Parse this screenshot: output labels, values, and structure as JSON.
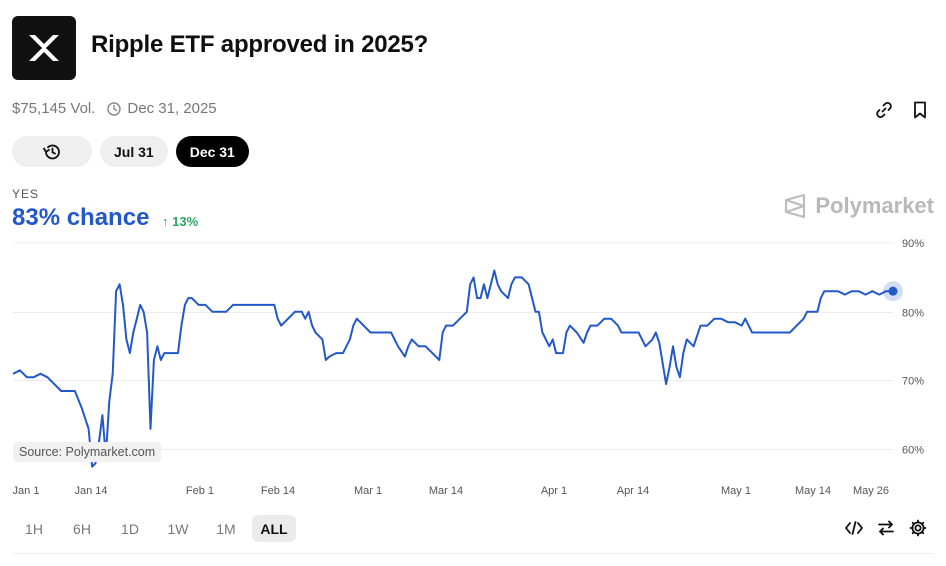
{
  "market": {
    "title": "Ripple ETF approved in 2025?",
    "volume": "$75,145 Vol.",
    "end_date": "Dec 31, 2025"
  },
  "pills": {
    "jul": "Jul 31",
    "dec": "Dec 31"
  },
  "outcome": {
    "label": "YES",
    "chance": "83% chance",
    "delta": "↑ 13%"
  },
  "brand": {
    "name": "Polymarket"
  },
  "source": "Source: Polymarket.com",
  "ranges": [
    "1H",
    "6H",
    "1D",
    "1W",
    "1M",
    "ALL"
  ],
  "colors": {
    "line": "#2358c9",
    "up": "#2fa462"
  },
  "chart_data": {
    "type": "line",
    "y_ticks": [
      "90%",
      "80%",
      "70%",
      "60%"
    ],
    "x_ticks": [
      "Jan 1",
      "Jan 14",
      "Feb 1",
      "Feb 14",
      "Mar 1",
      "Mar 14",
      "Apr 1",
      "Apr 14",
      "May 1",
      "May 14",
      "May 26"
    ],
    "ylim": [
      57,
      90
    ],
    "grid": true,
    "series": [
      {
        "points": [
          [
            0,
            71
          ],
          [
            1,
            71.5
          ],
          [
            2,
            70.5
          ],
          [
            3,
            70.5
          ],
          [
            4,
            71
          ],
          [
            5,
            70.5
          ],
          [
            6,
            69.5
          ],
          [
            7,
            68.5
          ],
          [
            8,
            68.5
          ],
          [
            9,
            68.5
          ],
          [
            10,
            66
          ],
          [
            11,
            63
          ],
          [
            11.5,
            57.5
          ],
          [
            12,
            58
          ],
          [
            12.5,
            61
          ],
          [
            13,
            65
          ],
          [
            13.5,
            59
          ],
          [
            14,
            67
          ],
          [
            14.5,
            71
          ],
          [
            15,
            83
          ],
          [
            15.5,
            84
          ],
          [
            16,
            81
          ],
          [
            16.5,
            76
          ],
          [
            17,
            74
          ],
          [
            17.5,
            77
          ],
          [
            18,
            79
          ],
          [
            18.5,
            81
          ],
          [
            19,
            80
          ],
          [
            19.5,
            77
          ],
          [
            20,
            63
          ],
          [
            20.5,
            73
          ],
          [
            21,
            75
          ],
          [
            21.5,
            73
          ],
          [
            22,
            74
          ],
          [
            23,
            74
          ],
          [
            24,
            74
          ],
          [
            24.5,
            78
          ],
          [
            25,
            81
          ],
          [
            25.5,
            82
          ],
          [
            26,
            82
          ],
          [
            27,
            81
          ],
          [
            28,
            81
          ],
          [
            29,
            80
          ],
          [
            30,
            80
          ],
          [
            31,
            80
          ],
          [
            32,
            81
          ],
          [
            33,
            81
          ],
          [
            34,
            81
          ],
          [
            35,
            81
          ],
          [
            36,
            81
          ],
          [
            37,
            81
          ],
          [
            38,
            81
          ],
          [
            38.5,
            79
          ],
          [
            39,
            78
          ],
          [
            39.5,
            78.5
          ],
          [
            40,
            79
          ],
          [
            41,
            80
          ],
          [
            42,
            80
          ],
          [
            42.5,
            79
          ],
          [
            43,
            80
          ],
          [
            43.5,
            78
          ],
          [
            44,
            77
          ],
          [
            45,
            76
          ],
          [
            45.5,
            73
          ],
          [
            46,
            73.5
          ],
          [
            47,
            74
          ],
          [
            48,
            74
          ],
          [
            48.5,
            75
          ],
          [
            49,
            76
          ],
          [
            49.5,
            78
          ],
          [
            50,
            79
          ],
          [
            51,
            78
          ],
          [
            52,
            77
          ],
          [
            53,
            77
          ],
          [
            54,
            77
          ],
          [
            55,
            77
          ],
          [
            55.5,
            76
          ],
          [
            56,
            75
          ],
          [
            57,
            73.5
          ],
          [
            57.5,
            75
          ],
          [
            58,
            76
          ],
          [
            59,
            75
          ],
          [
            60,
            75
          ],
          [
            61,
            74
          ],
          [
            62,
            73
          ],
          [
            62.5,
            77
          ],
          [
            63,
            78
          ],
          [
            64,
            78
          ],
          [
            65,
            79
          ],
          [
            66,
            80
          ],
          [
            66.5,
            84
          ],
          [
            67,
            85
          ],
          [
            67.5,
            82
          ],
          [
            68,
            82
          ],
          [
            68.5,
            84
          ],
          [
            69,
            82
          ],
          [
            70,
            86
          ],
          [
            70.5,
            84
          ],
          [
            71,
            83
          ],
          [
            72,
            82
          ],
          [
            72.5,
            84
          ],
          [
            73,
            85
          ],
          [
            74,
            85
          ],
          [
            75,
            84
          ],
          [
            75.5,
            82
          ],
          [
            76,
            80
          ],
          [
            76.5,
            80
          ],
          [
            77,
            77
          ],
          [
            78,
            75
          ],
          [
            78.5,
            76
          ],
          [
            79,
            74
          ],
          [
            80,
            74
          ],
          [
            80.5,
            77
          ],
          [
            81,
            78
          ],
          [
            82,
            77
          ],
          [
            83,
            75.5
          ],
          [
            83.5,
            77
          ],
          [
            84,
            78
          ],
          [
            85,
            78
          ],
          [
            86,
            79
          ],
          [
            87,
            79
          ],
          [
            88,
            78
          ],
          [
            88.5,
            77
          ],
          [
            89,
            77
          ],
          [
            90,
            77
          ],
          [
            91,
            77
          ],
          [
            92,
            75
          ],
          [
            93,
            76
          ],
          [
            93.5,
            77
          ],
          [
            94,
            75.5
          ],
          [
            95,
            69.5
          ],
          [
            95.5,
            72
          ],
          [
            96,
            75
          ],
          [
            96.5,
            72
          ],
          [
            97,
            70.5
          ],
          [
            97.5,
            74
          ],
          [
            98,
            76
          ],
          [
            99,
            75
          ],
          [
            100,
            78
          ],
          [
            101,
            78
          ],
          [
            102,
            79
          ],
          [
            103,
            79
          ],
          [
            104,
            78.5
          ],
          [
            105,
            78.5
          ],
          [
            106,
            78
          ],
          [
            106.5,
            79
          ],
          [
            107,
            78
          ],
          [
            107.5,
            77
          ],
          [
            108,
            77
          ],
          [
            109,
            77
          ],
          [
            110,
            77
          ],
          [
            111,
            77
          ],
          [
            112,
            77
          ],
          [
            113,
            77
          ],
          [
            114,
            78
          ],
          [
            115,
            79
          ],
          [
            115.5,
            80
          ],
          [
            116,
            80
          ],
          [
            117,
            80
          ],
          [
            117.5,
            82
          ],
          [
            118,
            83
          ],
          [
            119,
            83
          ],
          [
            120,
            83
          ],
          [
            121,
            82.5
          ],
          [
            122,
            83
          ],
          [
            123,
            83
          ],
          [
            124,
            82.5
          ],
          [
            125,
            83
          ],
          [
            126,
            82.5
          ],
          [
            127,
            83
          ],
          [
            128,
            83
          ]
        ]
      }
    ]
  }
}
